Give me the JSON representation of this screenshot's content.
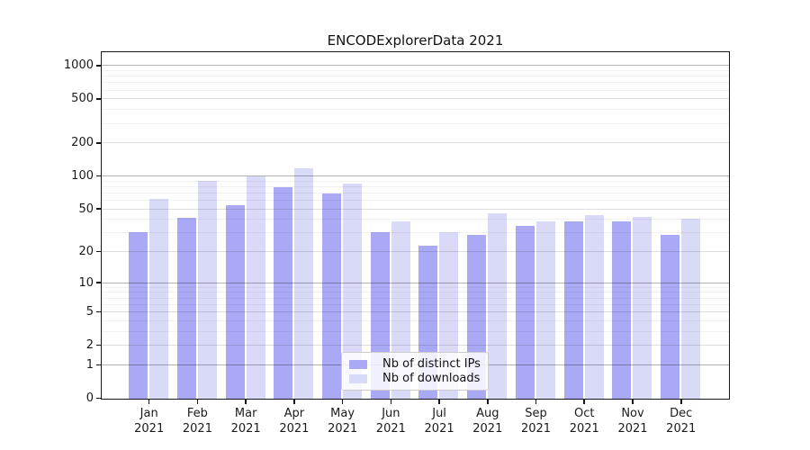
{
  "title": "ENCODExplorerData 2021",
  "chart_data": {
    "type": "bar",
    "title": "ENCODExplorerData 2021",
    "categories": [
      "Jan",
      "Feb",
      "Mar",
      "Apr",
      "May",
      "Jun",
      "Jul",
      "Aug",
      "Sep",
      "Oct",
      "Nov",
      "Dec"
    ],
    "year_label": "2021",
    "series": [
      {
        "name": "Nb of distinct IPs",
        "color": "#a9a9f6",
        "values": [
          31,
          42,
          55,
          80,
          70,
          31,
          23,
          29,
          35,
          39,
          39,
          29
        ]
      },
      {
        "name": "Nb of downloads",
        "color": "#d9d9f8",
        "values": [
          62,
          91,
          101,
          118,
          86,
          39,
          31,
          46,
          39,
          44,
          43,
          41
        ]
      }
    ],
    "xlabel": "",
    "ylabel": "",
    "y_axis": {
      "scale": "log(value+1)",
      "ticks": [
        1000,
        500,
        200,
        100,
        50,
        20,
        10,
        5,
        2,
        1,
        0
      ],
      "decade_ticks": [
        1000,
        100,
        10,
        1
      ],
      "minor_ticks": [
        3,
        4,
        6,
        7,
        8,
        9,
        30,
        40,
        60,
        70,
        80,
        90,
        300,
        400,
        600,
        700,
        800,
        900
      ],
      "ylim": [
        0,
        1308
      ]
    },
    "grid": "major+minor horizontal, drawn over bars",
    "legend_position": "inside bottom-center"
  }
}
